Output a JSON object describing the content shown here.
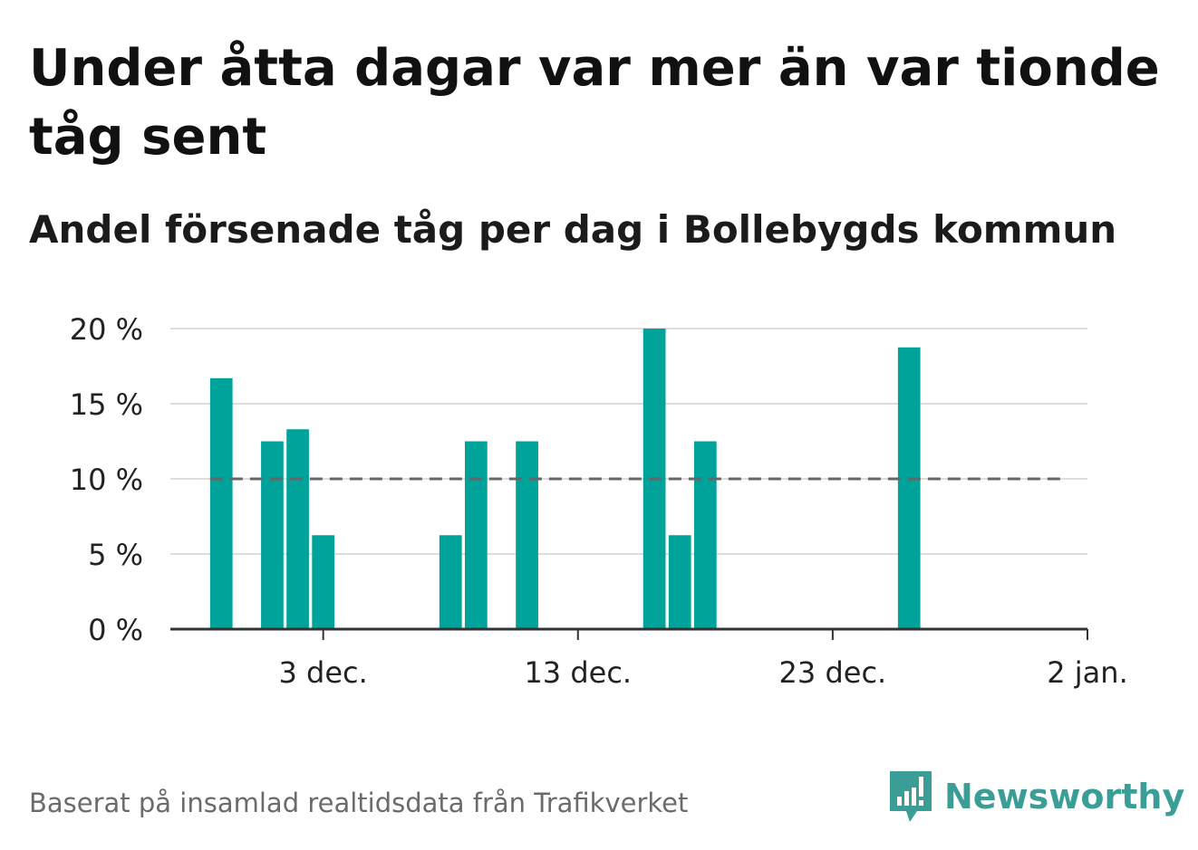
{
  "title": "Under åtta dagar var mer än var tionde tåg sent",
  "subtitle": "Andel försenade tåg per dag i Bollebygds kommun",
  "source": "Baserat på insamlad realtidsdata från Trafikverket",
  "brand": {
    "name": "Newsworthy",
    "icon": "newsworthy-logo-icon"
  },
  "colors": {
    "bar": "#00a39a",
    "reference": "#666666",
    "grid": "#dddddd",
    "axis": "#333333",
    "brand": "#3a9e96"
  },
  "chart_data": {
    "type": "bar",
    "x": [
      "2020-11-29",
      "2020-11-30",
      "2020-12-01",
      "2020-12-02",
      "2020-12-03",
      "2020-12-04",
      "2020-12-05",
      "2020-12-06",
      "2020-12-07",
      "2020-12-08",
      "2020-12-09",
      "2020-12-10",
      "2020-12-11",
      "2020-12-12",
      "2020-12-13",
      "2020-12-14",
      "2020-12-15",
      "2020-12-16",
      "2020-12-17",
      "2020-12-18",
      "2020-12-19",
      "2020-12-20",
      "2020-12-21",
      "2020-12-22",
      "2020-12-23",
      "2020-12-24",
      "2020-12-25",
      "2020-12-26",
      "2020-12-27",
      "2020-12-28",
      "2020-12-29",
      "2020-12-30",
      "2020-12-31",
      "2021-01-01"
    ],
    "values": [
      16.7,
      0,
      12.5,
      13.3,
      6.25,
      0,
      0,
      0,
      0,
      6.25,
      12.5,
      0,
      12.5,
      0,
      0,
      0,
      0,
      20,
      6.25,
      12.5,
      0,
      0,
      0,
      0,
      0,
      0,
      0,
      18.75,
      0,
      0,
      0,
      0,
      0,
      0
    ],
    "reference_line": {
      "value": 10,
      "style": "dashed"
    },
    "ylim": [
      0,
      20
    ],
    "yticks": [
      0,
      5,
      10,
      15,
      20
    ],
    "ytick_labels": [
      "0 %",
      "5 %",
      "10 %",
      "15 %",
      "20 %"
    ],
    "xticks": [
      "2020-12-03",
      "2020-12-13",
      "2020-12-23",
      "2021-01-02"
    ],
    "xtick_labels": [
      "3 dec.",
      "13 dec.",
      "23 dec.",
      "2 jan."
    ],
    "xlim": [
      "2020-11-27",
      "2021-01-02"
    ],
    "grid": true,
    "xlabel": "",
    "ylabel": ""
  }
}
